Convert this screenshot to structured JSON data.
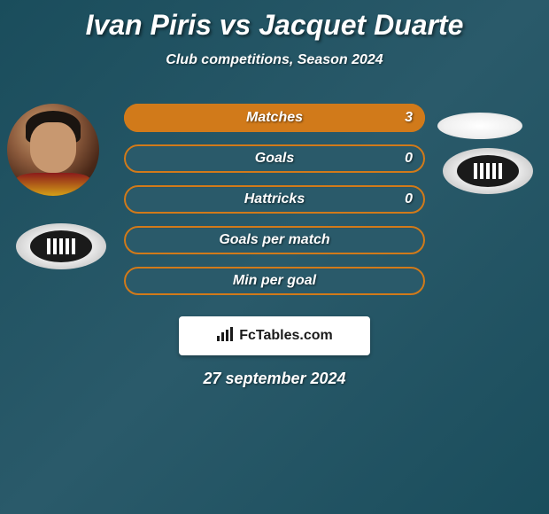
{
  "title": "Ivan Piris vs Jacquet Duarte",
  "subtitle": "Club competitions, Season 2024",
  "stats": [
    {
      "label": "Matches",
      "value": "3",
      "fill_pct": 100,
      "fill_color": "#d17a1a",
      "border_color": "#d17a1a"
    },
    {
      "label": "Goals",
      "value": "0",
      "fill_pct": 0,
      "fill_color": "#d17a1a",
      "border_color": "#d17a1a"
    },
    {
      "label": "Hattricks",
      "value": "0",
      "fill_pct": 0,
      "fill_color": "#d17a1a",
      "border_color": "#d17a1a"
    },
    {
      "label": "Goals per match",
      "value": "",
      "fill_pct": 0,
      "fill_color": "#d17a1a",
      "border_color": "#d17a1a"
    },
    {
      "label": "Min per goal",
      "value": "",
      "fill_pct": 0,
      "fill_color": "#d17a1a",
      "border_color": "#d17a1a"
    }
  ],
  "bar_background": "#2a5a6a",
  "banner_text": "FcTables.com",
  "date": "27 september 2024",
  "colors": {
    "background_gradient_start": "#1a4d5c",
    "background_gradient_mid": "#2a5a6a",
    "text_white": "#ffffff",
    "orange": "#d17a1a"
  }
}
